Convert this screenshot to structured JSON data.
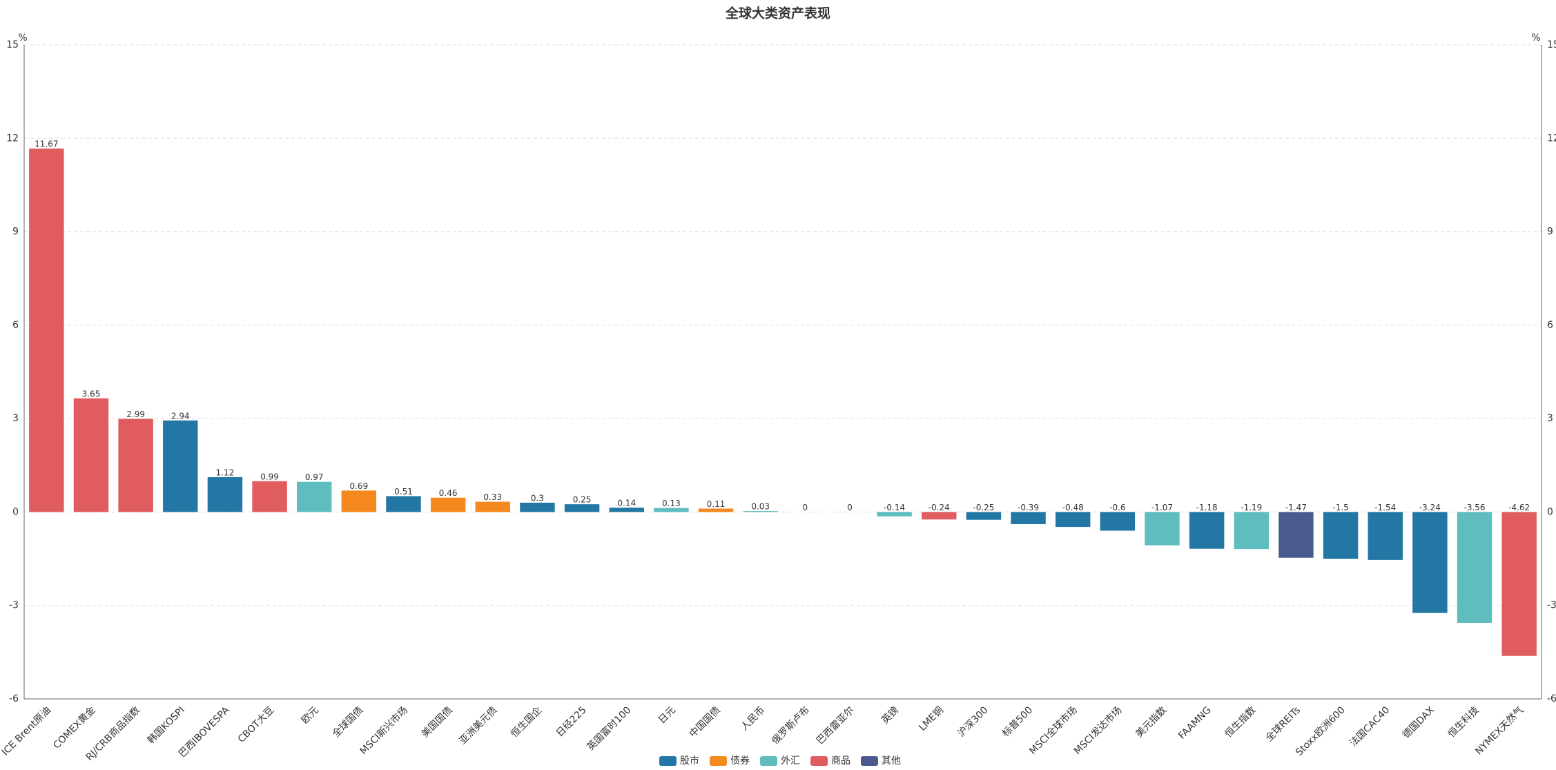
{
  "chart_data": {
    "type": "bar",
    "title": "全球大类资产表现",
    "unit": "%",
    "categories": [
      "ICE Brent原油",
      "COMEX黄金",
      "RJ/CRB商品指数",
      "韩国KOSPI",
      "巴西IBOVESPA",
      "CBOT大豆",
      "欧元",
      "全球国债",
      "MSCI新兴市场",
      "美国国债",
      "亚洲美元债",
      "恒生国企",
      "日经225",
      "英国富时100",
      "日元",
      "中国国债",
      "人民币",
      "俄罗斯卢布",
      "巴西雷亚尔",
      "英镑",
      "LME铜",
      "沪深300",
      "标普500",
      "MSCI全球市场",
      "MSCI发达市场",
      "美元指数",
      "FAAMNG",
      "恒生指数",
      "全球REITs",
      "Stoxx欧洲600",
      "法国CAC40",
      "德国DAX",
      "恒生科技",
      "NYMEX天然气"
    ],
    "series": [
      {
        "name": "股市",
        "color": "#2277a4",
        "values": [
          null,
          null,
          null,
          2.94,
          1.12,
          null,
          null,
          null,
          0.51,
          null,
          null,
          0.3,
          0.25,
          0.14,
          null,
          null,
          null,
          null,
          null,
          null,
          null,
          -0.25,
          -0.39,
          -0.48,
          -0.6,
          null,
          -1.18,
          null,
          null,
          -1.5,
          -1.54,
          -3.24,
          null,
          null
        ]
      },
      {
        "name": "债券",
        "color": "#f5891f",
        "values": [
          null,
          null,
          null,
          null,
          null,
          null,
          null,
          0.69,
          null,
          0.46,
          0.33,
          null,
          null,
          null,
          null,
          0.11,
          null,
          null,
          null,
          null,
          null,
          null,
          null,
          null,
          null,
          null,
          null,
          null,
          null,
          null,
          null,
          null,
          null,
          null
        ]
      },
      {
        "name": "外汇",
        "color": "#5fbdbf",
        "values": [
          null,
          null,
          null,
          null,
          null,
          null,
          0.97,
          null,
          null,
          null,
          null,
          null,
          null,
          null,
          0.13,
          null,
          0.03,
          0,
          0,
          -0.14,
          null,
          null,
          null,
          null,
          null,
          -1.07,
          null,
          -1.19,
          null,
          null,
          null,
          null,
          -3.56,
          null
        ]
      },
      {
        "name": "商品",
        "color": "#e15c5e",
        "values": [
          11.67,
          3.65,
          2.99,
          null,
          null,
          0.99,
          null,
          null,
          null,
          null,
          null,
          null,
          null,
          null,
          null,
          null,
          null,
          null,
          null,
          null,
          -0.24,
          null,
          null,
          null,
          null,
          null,
          null,
          null,
          null,
          null,
          null,
          null,
          null,
          -4.62
        ]
      },
      {
        "name": "其他",
        "color": "#4b5a8e",
        "values": [
          null,
          null,
          null,
          null,
          null,
          null,
          null,
          null,
          null,
          null,
          null,
          null,
          null,
          null,
          null,
          null,
          null,
          null,
          null,
          null,
          null,
          null,
          null,
          null,
          null,
          null,
          null,
          null,
          -1.47,
          null,
          null,
          null,
          null,
          null
        ]
      }
    ],
    "ylim": [
      -6,
      15
    ],
    "yticks": [
      -6,
      -3,
      0,
      3,
      6,
      9,
      12,
      15
    ],
    "grid": true
  }
}
